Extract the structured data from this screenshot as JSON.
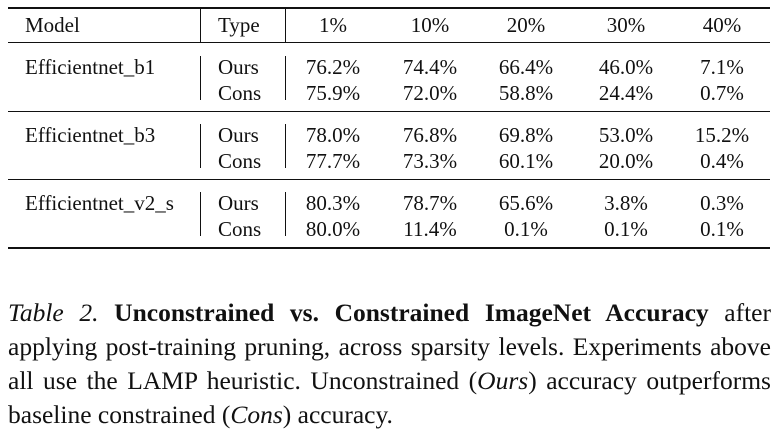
{
  "table": {
    "header": {
      "model": "Model",
      "type": "Type",
      "levels": [
        "1%",
        "10%",
        "20%",
        "30%",
        "40%"
      ]
    },
    "groups": [
      {
        "model": "Efficientnet_b1",
        "rows": [
          {
            "type": "Ours",
            "values": [
              "76.2%",
              "74.4%",
              "66.4%",
              "46.0%",
              "7.1%"
            ]
          },
          {
            "type": "Cons",
            "values": [
              "75.9%",
              "72.0%",
              "58.8%",
              "24.4%",
              "0.7%"
            ]
          }
        ]
      },
      {
        "model": "Efficientnet_b3",
        "rows": [
          {
            "type": "Ours",
            "values": [
              "78.0%",
              "76.8%",
              "69.8%",
              "53.0%",
              "15.2%"
            ]
          },
          {
            "type": "Cons",
            "values": [
              "77.7%",
              "73.3%",
              "60.1%",
              "20.0%",
              "0.4%"
            ]
          }
        ]
      },
      {
        "model": "Efficientnet_v2_s",
        "rows": [
          {
            "type": "Ours",
            "values": [
              "80.3%",
              "78.7%",
              "65.6%",
              "3.8%",
              "0.3%"
            ]
          },
          {
            "type": "Cons",
            "values": [
              "80.0%",
              "11.4%",
              "0.1%",
              "0.1%",
              "0.1%"
            ]
          }
        ]
      }
    ]
  },
  "caption": {
    "label": "Table 2.",
    "title": "Unconstrained vs. Constrained ImageNet Accuracy",
    "text_1": "after applying post-training pruning, across sparsity levels. Experiments above all use the LAMP heuristic. Unconstrained (",
    "ours": "Ours",
    "text_2": ") accuracy outperforms baseline constrained (",
    "cons": "Cons",
    "text_3": ") accuracy."
  }
}
